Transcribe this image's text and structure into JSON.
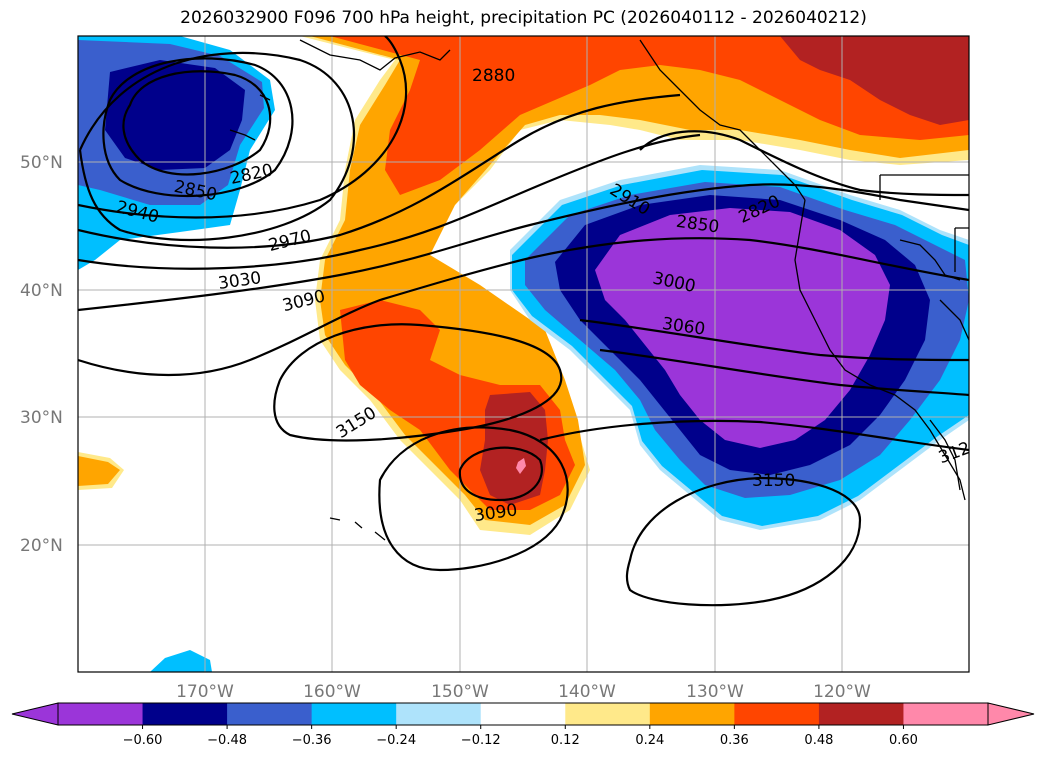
{
  "title": "2026032900 F096 700 hPa height, precipitation PC (2026040112 - 2026040212)",
  "map": {
    "lat_labels": [
      "50°N",
      "40°N",
      "30°N",
      "20°N"
    ],
    "lon_labels": [
      "170°W",
      "160°W",
      "150°W",
      "140°W",
      "130°W",
      "120°W"
    ],
    "contour_labels": [
      "2880",
      "2820",
      "2850",
      "2940",
      "2970",
      "3030",
      "3090",
      "3150",
      "3090",
      "2910",
      "2850",
      "2820",
      "3000",
      "3060",
      "3150",
      "312"
    ]
  },
  "colorbar": {
    "tick_labels": [
      "−0.60",
      "−0.48",
      "−0.36",
      "−0.24",
      "−0.12",
      "0.12",
      "0.24",
      "0.36",
      "0.48",
      "0.60"
    ],
    "colors": [
      "#9b35d9",
      "#00008b",
      "#3a5fcd",
      "#00bfff",
      "#aee3fb",
      "#ffffff",
      "#ffe98a",
      "#ffa500",
      "#ff4500",
      "#b22222",
      "#ff88aa"
    ]
  }
}
